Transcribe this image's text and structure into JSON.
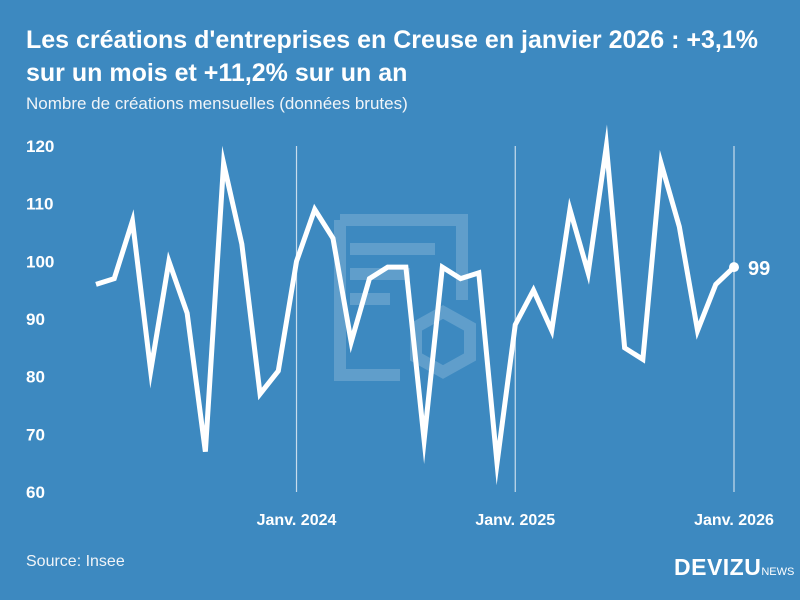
{
  "title": "Les créations d'entreprises en Creuse en janvier 2026 : +3,1% sur un mois et +11,2% sur un an",
  "subtitle": "Nombre de créations mensuelles (données brutes)",
  "source": "Source: Insee",
  "logo": {
    "main": "DEVIZU",
    "suffix": "NEWS"
  },
  "colors": {
    "background": "#3d89c0",
    "line": "#ffffff"
  },
  "chart_data": {
    "type": "line",
    "title": "Les créations d'entreprises en Creuse en janvier 2026 : +3,1% sur un mois et +11,2% sur un an",
    "ylabel": "",
    "xlabel": "",
    "ylim": [
      60,
      120
    ],
    "yticks": [
      60,
      70,
      80,
      90,
      100,
      110,
      120
    ],
    "xticks": [
      {
        "index": 11,
        "label": "Janv. 2024"
      },
      {
        "index": 23,
        "label": "Janv. 2025"
      },
      {
        "index": 35,
        "label": "Janv. 2026"
      }
    ],
    "x": [
      "2023-02",
      "2023-03",
      "2023-04",
      "2023-05",
      "2023-06",
      "2023-07",
      "2023-08",
      "2023-09",
      "2023-10",
      "2023-11",
      "2023-12",
      "2024-01",
      "2024-02",
      "2024-03",
      "2024-04",
      "2024-05",
      "2024-06",
      "2024-07",
      "2024-08",
      "2024-09",
      "2024-10",
      "2024-11",
      "2024-12",
      "2025-01",
      "2025-02",
      "2025-03",
      "2025-04",
      "2025-05",
      "2025-06",
      "2025-07",
      "2025-08",
      "2025-09",
      "2025-10",
      "2025-11",
      "2025-12",
      "2026-01"
    ],
    "values": [
      96,
      97,
      107,
      81,
      100,
      91,
      67,
      117,
      103,
      77,
      81,
      100,
      109,
      104,
      86,
      97,
      99,
      99,
      69,
      99,
      97,
      98,
      65,
      89,
      95,
      88,
      109,
      98,
      120,
      85,
      83,
      117,
      106,
      88,
      96,
      99
    ],
    "last_label": "99",
    "grid": "vertical lines at year ticks"
  }
}
